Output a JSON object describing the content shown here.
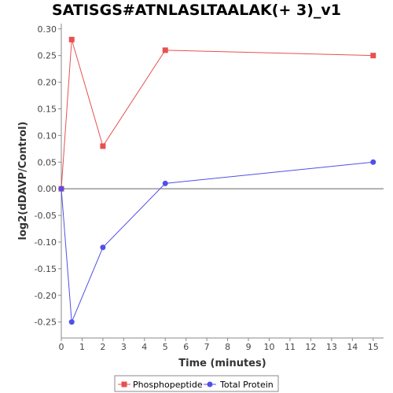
{
  "chart_data": {
    "type": "line",
    "title": "SATISGS#ATNLASLTAALAK(+ 3)_v1",
    "xlabel": "Time (minutes)",
    "ylabel": "log2(dDAVP/Control)",
    "xlim": [
      0,
      15.5
    ],
    "ylim": [
      -0.28,
      0.31
    ],
    "xticks": [
      0,
      1,
      2,
      3,
      4,
      5,
      6,
      7,
      8,
      9,
      10,
      11,
      12,
      13,
      14,
      15
    ],
    "yticks": [
      -0.25,
      -0.2,
      -0.15,
      -0.1,
      -0.05,
      0.0,
      0.05,
      0.1,
      0.15,
      0.2,
      0.25,
      0.3
    ],
    "ytick_labels": [
      "-0.25",
      "-0.20",
      "-0.15",
      "-0.10",
      "-0.05",
      "0.00",
      "0.05",
      "0.10",
      "0.15",
      "0.20",
      "0.25",
      "0.30"
    ],
    "grid": false,
    "legend_position": "bottom-center",
    "series": [
      {
        "name": "Phosphopeptide",
        "color": "#e85050",
        "marker": "square",
        "x": [
          0,
          0.5,
          2,
          5,
          15
        ],
        "y": [
          0.0,
          0.28,
          0.08,
          0.26,
          0.25
        ]
      },
      {
        "name": "Total Protein",
        "color": "#5050e8",
        "marker": "circle",
        "x": [
          0,
          0.5,
          2,
          5,
          15
        ],
        "y": [
          0.0,
          -0.25,
          -0.11,
          0.01,
          0.05
        ]
      }
    ]
  }
}
